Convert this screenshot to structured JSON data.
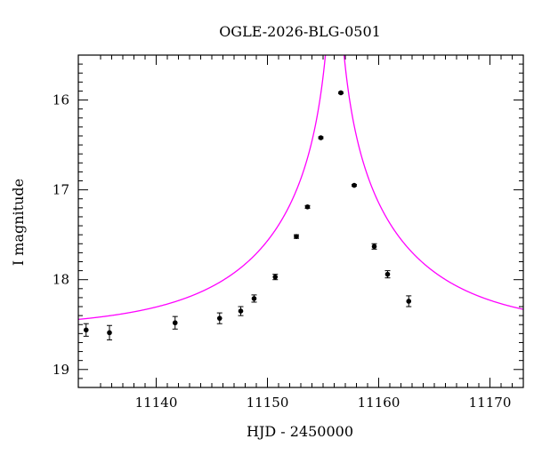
{
  "chart_data": {
    "type": "scatter",
    "title": "OGLE-2026-BLG-0501",
    "xlabel": "HJD - 2450000",
    "ylabel": "I magnitude",
    "xlim": [
      11133,
      11173
    ],
    "ylim": [
      19.2,
      15.5
    ],
    "y_inverted": true,
    "grid": false,
    "x_ticks": [
      11140,
      11150,
      11160,
      11170
    ],
    "y_ticks": [
      16,
      17,
      18,
      19
    ],
    "x_tick_labels": [
      "11140",
      "11150",
      "11160",
      "11170"
    ],
    "y_tick_labels": [
      "16",
      "17",
      "18",
      "19"
    ],
    "points": [
      {
        "x": 11133.7,
        "y": 18.56,
        "err": 0.07
      },
      {
        "x": 11135.8,
        "y": 18.59,
        "err": 0.08
      },
      {
        "x": 11141.7,
        "y": 18.48,
        "err": 0.07
      },
      {
        "x": 11145.7,
        "y": 18.43,
        "err": 0.06
      },
      {
        "x": 11147.6,
        "y": 18.35,
        "err": 0.05
      },
      {
        "x": 11148.8,
        "y": 18.21,
        "err": 0.04
      },
      {
        "x": 11150.7,
        "y": 17.97,
        "err": 0.03
      },
      {
        "x": 11152.6,
        "y": 17.52,
        "err": 0.02
      },
      {
        "x": 11153.6,
        "y": 17.19,
        "err": 0.015
      },
      {
        "x": 11154.8,
        "y": 16.42,
        "err": 0.01
      },
      {
        "x": 11156.6,
        "y": 15.92,
        "err": 0.01
      },
      {
        "x": 11157.8,
        "y": 16.95,
        "err": 0.01
      },
      {
        "x": 11159.6,
        "y": 17.63,
        "err": 0.03
      },
      {
        "x": 11160.8,
        "y": 17.94,
        "err": 0.04
      },
      {
        "x": 11162.7,
        "y": 18.24,
        "err": 0.06
      }
    ],
    "model": {
      "type": "line",
      "color": "#ff00ff",
      "baseline": 18.55,
      "t0": 11156.05,
      "tE": 14,
      "u0": 0.006
    },
    "marker_color": "#000000",
    "frame_color": "#000000"
  }
}
